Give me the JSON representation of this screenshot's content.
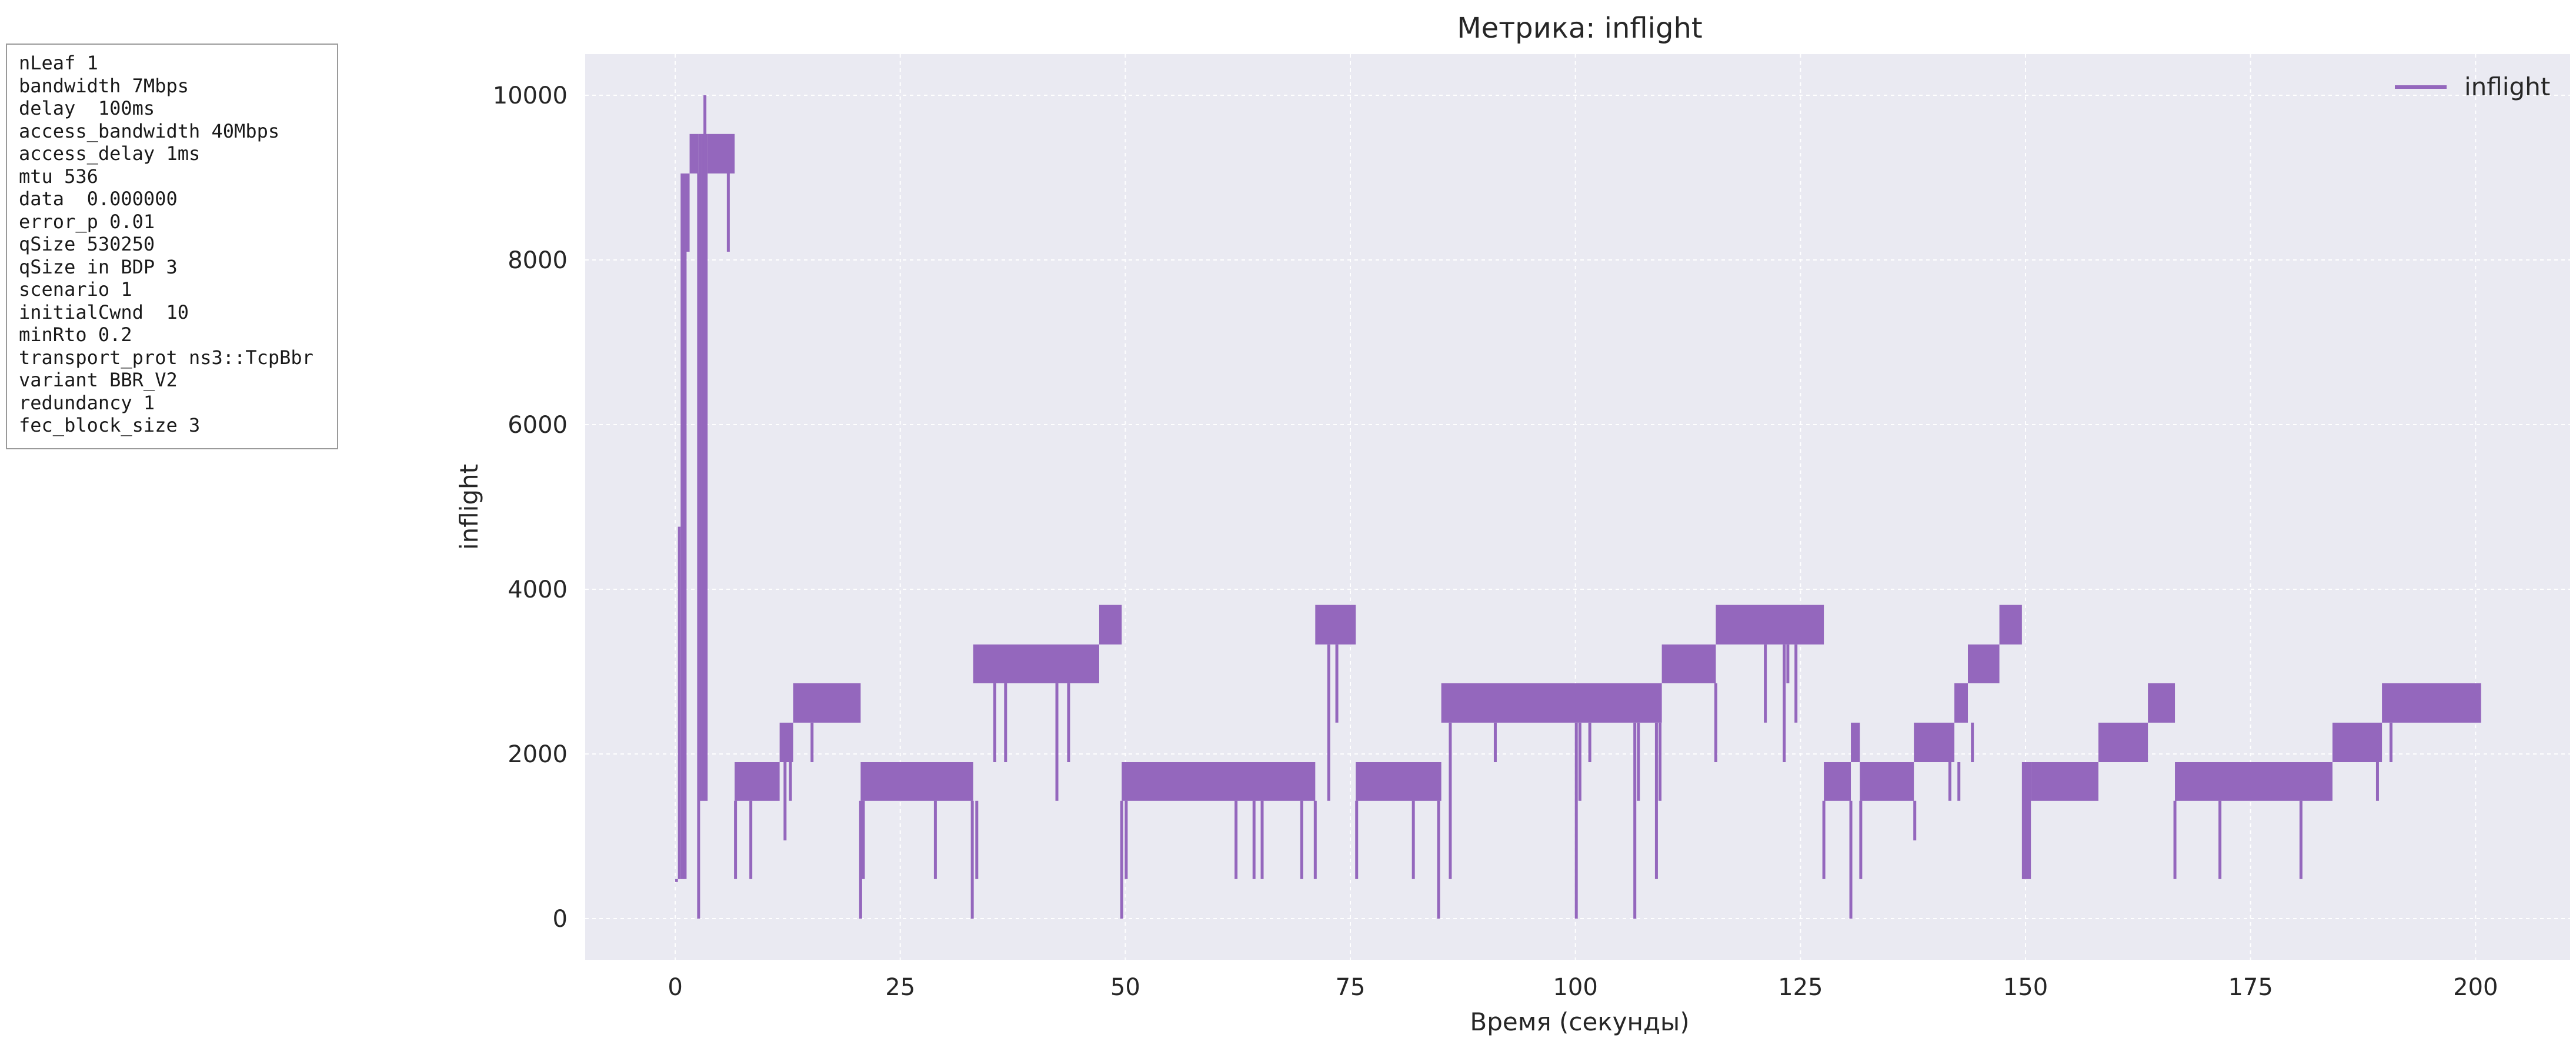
{
  "params_box": {
    "lines": [
      "nLeaf 1",
      "bandwidth 7Mbps",
      "delay  100ms",
      "access_bandwidth 40Mbps",
      "access_delay 1ms",
      "mtu 536",
      "data  0.000000",
      "error_p 0.01",
      "qSize 530250",
      "qSize in BDP 3",
      "scenario 1",
      "initialCwnd  10",
      "minRto 0.2",
      "transport_prot ns3::TcpBbr",
      "variant BBR_V2",
      "redundancy 1",
      "fec_block_size 3"
    ]
  },
  "colors": {
    "series": "#9467bd",
    "plot_background": "#eaeaf2",
    "grid": "#ffffff",
    "text": "#262626"
  },
  "chart_data": {
    "type": "line",
    "title": "Метрика: inflight",
    "xlabel": "Время (секунды)",
    "ylabel": "inflight",
    "xlim": [
      -10,
      210.5
    ],
    "ylim": [
      -500,
      10500
    ],
    "x_ticks": [
      0,
      25,
      50,
      75,
      100,
      125,
      150,
      175,
      200
    ],
    "y_ticks": [
      0,
      2000,
      4000,
      6000,
      8000,
      10000
    ],
    "grid": true,
    "legend": {
      "position": "top-right",
      "entries": [
        "inflight"
      ]
    },
    "series": [
      {
        "name": "inflight",
        "style": "step-band",
        "bands": [
          {
            "x0": 0.0,
            "x1": 0.3,
            "low": 480,
            "high": 480
          },
          {
            "x0": 0.3,
            "x1": 0.6,
            "low": 480,
            "high": 4760
          },
          {
            "x0": 0.6,
            "x1": 1.0,
            "low": 480,
            "high": 9050
          },
          {
            "x0": 1.0,
            "x1": 1.6,
            "low": 8100,
            "high": 9050
          },
          {
            "x0": 1.6,
            "x1": 2.6,
            "low": 9050,
            "high": 9530
          },
          {
            "x0": 2.6,
            "x1": 3.0,
            "low": 1430,
            "high": 9530
          },
          {
            "x0": 3.0,
            "x1": 3.6,
            "low": 1430,
            "high": 9530
          },
          {
            "x0": 3.6,
            "x1": 6.6,
            "low": 9050,
            "high": 9530
          },
          {
            "x0": 6.6,
            "x1": 11.6,
            "low": 1430,
            "high": 1900
          },
          {
            "x0": 11.6,
            "x1": 13.1,
            "low": 1900,
            "high": 2380
          },
          {
            "x0": 13.1,
            "x1": 20.6,
            "low": 2380,
            "high": 2860
          },
          {
            "x0": 20.6,
            "x1": 33.1,
            "low": 1430,
            "high": 1900
          },
          {
            "x0": 33.1,
            "x1": 47.1,
            "low": 2860,
            "high": 3330
          },
          {
            "x0": 47.1,
            "x1": 49.6,
            "low": 3330,
            "high": 3810
          },
          {
            "x0": 49.6,
            "x1": 71.1,
            "low": 1430,
            "high": 1900
          },
          {
            "x0": 71.1,
            "x1": 75.6,
            "low": 3330,
            "high": 3810
          },
          {
            "x0": 75.6,
            "x1": 85.1,
            "low": 1430,
            "high": 1900
          },
          {
            "x0": 85.1,
            "x1": 109.6,
            "low": 2380,
            "high": 2860
          },
          {
            "x0": 109.6,
            "x1": 115.6,
            "low": 2860,
            "high": 3330
          },
          {
            "x0": 115.6,
            "x1": 127.6,
            "low": 3330,
            "high": 3810
          },
          {
            "x0": 127.6,
            "x1": 130.6,
            "low": 1430,
            "high": 1900
          },
          {
            "x0": 130.6,
            "x1": 131.6,
            "low": 1900,
            "high": 2380
          },
          {
            "x0": 131.6,
            "x1": 137.6,
            "low": 1430,
            "high": 1900
          },
          {
            "x0": 137.6,
            "x1": 142.1,
            "low": 1900,
            "high": 2380
          },
          {
            "x0": 142.1,
            "x1": 143.6,
            "low": 2380,
            "high": 2860
          },
          {
            "x0": 143.6,
            "x1": 147.1,
            "low": 2860,
            "high": 3330
          },
          {
            "x0": 147.1,
            "x1": 149.6,
            "low": 3330,
            "high": 3810
          },
          {
            "x0": 149.6,
            "x1": 150.6,
            "low": 480,
            "high": 1900
          },
          {
            "x0": 150.6,
            "x1": 158.1,
            "low": 1430,
            "high": 1900
          },
          {
            "x0": 158.1,
            "x1": 163.6,
            "low": 1900,
            "high": 2380
          },
          {
            "x0": 163.6,
            "x1": 166.6,
            "low": 2380,
            "high": 2860
          },
          {
            "x0": 166.6,
            "x1": 184.1,
            "low": 1430,
            "high": 1900
          },
          {
            "x0": 184.1,
            "x1": 189.6,
            "low": 1900,
            "high": 2380
          },
          {
            "x0": 189.6,
            "x1": 200.6,
            "low": 2380,
            "high": 2860
          }
        ],
        "spikes": [
          {
            "x": 1.1,
            "low": 480,
            "high": 9050
          },
          {
            "x": 2.6,
            "low": 0,
            "high": 9050
          },
          {
            "x": 3.3,
            "low": 9050,
            "high": 10000
          },
          {
            "x": 5.9,
            "low": 8100,
            "high": 9050
          },
          {
            "x": 6.7,
            "low": 480,
            "high": 1430
          },
          {
            "x": 8.4,
            "low": 480,
            "high": 1430
          },
          {
            "x": 12.2,
            "low": 950,
            "high": 1900
          },
          {
            "x": 12.8,
            "low": 1430,
            "high": 1900
          },
          {
            "x": 15.2,
            "low": 1900,
            "high": 2380
          },
          {
            "x": 20.6,
            "low": 0,
            "high": 1430
          },
          {
            "x": 20.9,
            "low": 480,
            "high": 1430
          },
          {
            "x": 28.9,
            "low": 480,
            "high": 1430
          },
          {
            "x": 33.0,
            "low": 0,
            "high": 1430
          },
          {
            "x": 33.5,
            "low": 480,
            "high": 1430
          },
          {
            "x": 35.5,
            "low": 1900,
            "high": 2860
          },
          {
            "x": 36.7,
            "low": 1900,
            "high": 2860
          },
          {
            "x": 42.4,
            "low": 1430,
            "high": 2860
          },
          {
            "x": 43.7,
            "low": 1900,
            "high": 2860
          },
          {
            "x": 49.6,
            "low": 0,
            "high": 1430
          },
          {
            "x": 50.1,
            "low": 480,
            "high": 1430
          },
          {
            "x": 62.3,
            "low": 480,
            "high": 1430
          },
          {
            "x": 64.3,
            "low": 480,
            "high": 1430
          },
          {
            "x": 65.2,
            "low": 480,
            "high": 1430
          },
          {
            "x": 69.6,
            "low": 480,
            "high": 1430
          },
          {
            "x": 71.1,
            "low": 480,
            "high": 1430
          },
          {
            "x": 72.6,
            "low": 1430,
            "high": 3330
          },
          {
            "x": 73.5,
            "low": 2380,
            "high": 3330
          },
          {
            "x": 75.7,
            "low": 480,
            "high": 1430
          },
          {
            "x": 82.0,
            "low": 480,
            "high": 1430
          },
          {
            "x": 84.8,
            "low": 0,
            "high": 1430
          },
          {
            "x": 86.1,
            "low": 480,
            "high": 2380
          },
          {
            "x": 91.1,
            "low": 1900,
            "high": 2380
          },
          {
            "x": 100.1,
            "low": 0,
            "high": 2380
          },
          {
            "x": 100.5,
            "low": 1430,
            "high": 2380
          },
          {
            "x": 101.6,
            "low": 1900,
            "high": 2380
          },
          {
            "x": 106.6,
            "low": 0,
            "high": 2380
          },
          {
            "x": 107.0,
            "low": 1430,
            "high": 2380
          },
          {
            "x": 109.0,
            "low": 480,
            "high": 2380
          },
          {
            "x": 109.4,
            "low": 1430,
            "high": 2380
          },
          {
            "x": 115.6,
            "low": 1900,
            "high": 2860
          },
          {
            "x": 121.1,
            "low": 2380,
            "high": 3330
          },
          {
            "x": 123.2,
            "low": 1900,
            "high": 3330
          },
          {
            "x": 123.6,
            "low": 2860,
            "high": 3330
          },
          {
            "x": 124.5,
            "low": 2380,
            "high": 3330
          },
          {
            "x": 127.6,
            "low": 480,
            "high": 1430
          },
          {
            "x": 130.6,
            "low": 0,
            "high": 1430
          },
          {
            "x": 131.7,
            "low": 480,
            "high": 1430
          },
          {
            "x": 137.7,
            "low": 950,
            "high": 1430
          },
          {
            "x": 141.6,
            "low": 1430,
            "high": 1900
          },
          {
            "x": 142.6,
            "low": 1430,
            "high": 1900
          },
          {
            "x": 144.1,
            "low": 1900,
            "high": 2380
          },
          {
            "x": 149.8,
            "low": 480,
            "high": 1430
          },
          {
            "x": 166.6,
            "low": 480,
            "high": 1430
          },
          {
            "x": 171.6,
            "low": 480,
            "high": 1430
          },
          {
            "x": 180.6,
            "low": 480,
            "high": 1430
          },
          {
            "x": 189.1,
            "low": 1430,
            "high": 1900
          },
          {
            "x": 190.6,
            "low": 1900,
            "high": 2380
          }
        ]
      }
    ]
  }
}
